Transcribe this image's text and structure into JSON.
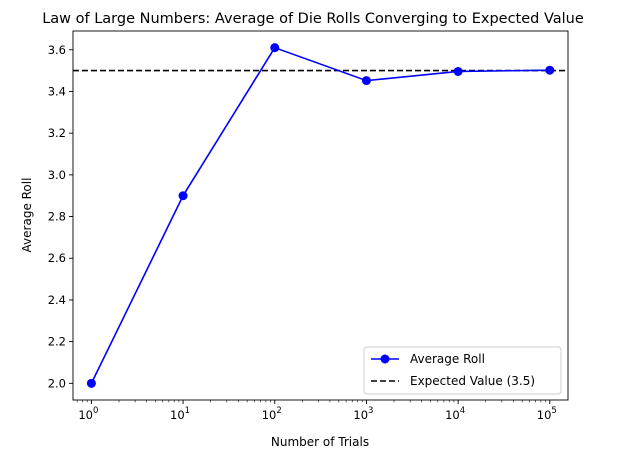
{
  "chart_data": {
    "type": "line",
    "title": "Law of Large Numbers: Average of Die Rolls Converging to Expected Value",
    "xlabel": "Number of Trials",
    "ylabel": "Average Roll",
    "xscale": "log",
    "xlim": [
      0.63,
      158000
    ],
    "ylim": [
      1.92,
      3.69
    ],
    "yticks": [
      "2.0",
      "2.2",
      "2.4",
      "2.6",
      "2.8",
      "3.0",
      "3.2",
      "3.4",
      "3.6"
    ],
    "xticks": [
      {
        "base": "10",
        "exp": "0"
      },
      {
        "base": "10",
        "exp": "1"
      },
      {
        "base": "10",
        "exp": "2"
      },
      {
        "base": "10",
        "exp": "3"
      },
      {
        "base": "10",
        "exp": "4"
      },
      {
        "base": "10",
        "exp": "5"
      }
    ],
    "grid": false,
    "legend_placement": "lower-right",
    "series": [
      {
        "name": "Average Roll",
        "color": "#0000ff",
        "marker": "circle",
        "x": [
          1,
          10,
          100,
          1000,
          10000,
          100000
        ],
        "y": [
          2.0,
          2.9,
          3.61,
          3.452,
          3.496,
          3.502
        ]
      }
    ],
    "reference_line": {
      "name": "Expected Value (3.5)",
      "y": 3.5,
      "color": "#000000",
      "style": "dashed"
    }
  }
}
